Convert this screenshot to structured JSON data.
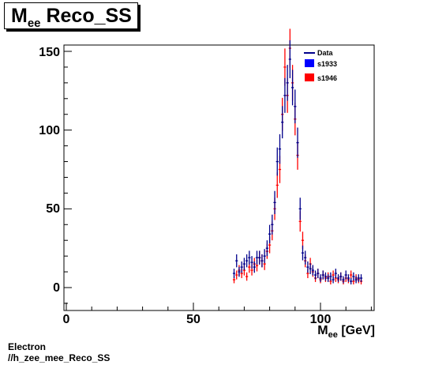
{
  "title": {
    "main": "M",
    "sub": "ee",
    "rest": " Reco_SS"
  },
  "footer": {
    "line1": "Electron",
    "line2": "//h_zee_mee_Reco_SS"
  },
  "colors": {
    "data": "#00008b",
    "s1933": "#0000ff",
    "s1946": "#ff0000"
  },
  "chart_data": {
    "type": "scatter",
    "title": "Mee Reco_SS",
    "xlabel": "M_ee [GeV]",
    "ylabel": "",
    "xlim": [
      -2,
      120
    ],
    "ylim": [
      -12,
      155
    ],
    "xticks": [
      0,
      50,
      100
    ],
    "yticks": [
      0,
      50,
      100,
      150
    ],
    "grid": false,
    "legend_position": "top-right",
    "legend": [
      {
        "label": "Data",
        "type": "line",
        "color": "#00008b"
      },
      {
        "label": "s1933",
        "type": "box",
        "color": "#0000ff"
      },
      {
        "label": "s1946",
        "type": "box",
        "color": "#ff0000"
      }
    ],
    "series": [
      {
        "name": "s1933",
        "color": "#00008b",
        "x": [
          66,
          67,
          68,
          69,
          70,
          71,
          72,
          73,
          74,
          75,
          76,
          77,
          78,
          79,
          80,
          81,
          82,
          83,
          84,
          85,
          86,
          87,
          88,
          89,
          90,
          91,
          92,
          93,
          94,
          95,
          96,
          97,
          98,
          99,
          100,
          101,
          102,
          103,
          104,
          105,
          106,
          107,
          108,
          109,
          110,
          111,
          112,
          113,
          114,
          115,
          116
        ],
        "y": [
          9,
          17,
          10,
          13,
          15,
          17,
          19,
          16,
          13,
          19,
          19,
          17,
          20,
          25,
          34,
          40,
          54,
          80,
          88,
          105,
          122,
          130,
          145,
          127,
          115,
          92,
          50,
          22,
          19,
          13,
          12,
          11,
          8,
          9,
          6,
          8,
          7,
          6,
          7,
          5,
          9,
          6,
          7,
          5,
          8,
          6,
          4,
          7,
          5,
          6,
          6
        ]
      },
      {
        "name": "s1946",
        "color": "#ff0000",
        "x": [
          66,
          67,
          68,
          69,
          70,
          71,
          72,
          73,
          74,
          75,
          76,
          77,
          78,
          79,
          80,
          81,
          82,
          83,
          84,
          85,
          86,
          87,
          88,
          89,
          90,
          91,
          92,
          93,
          94,
          95,
          96,
          97,
          98,
          99,
          100,
          101,
          102,
          103,
          104,
          105,
          106,
          107,
          108,
          109,
          110,
          111,
          112,
          113,
          114,
          115,
          116
        ],
        "y": [
          5,
          8,
          11,
          9,
          11,
          7,
          13,
          11,
          15,
          14,
          19,
          17,
          15,
          23,
          27,
          36,
          50,
          65,
          75,
          110,
          140,
          122,
          152,
          130,
          107,
          84,
          42,
          30,
          17,
          9,
          15,
          10,
          6,
          9,
          5,
          8,
          6,
          7,
          4,
          8,
          6,
          5,
          7,
          4,
          6,
          5,
          8,
          4,
          6,
          5,
          4
        ]
      }
    ]
  }
}
